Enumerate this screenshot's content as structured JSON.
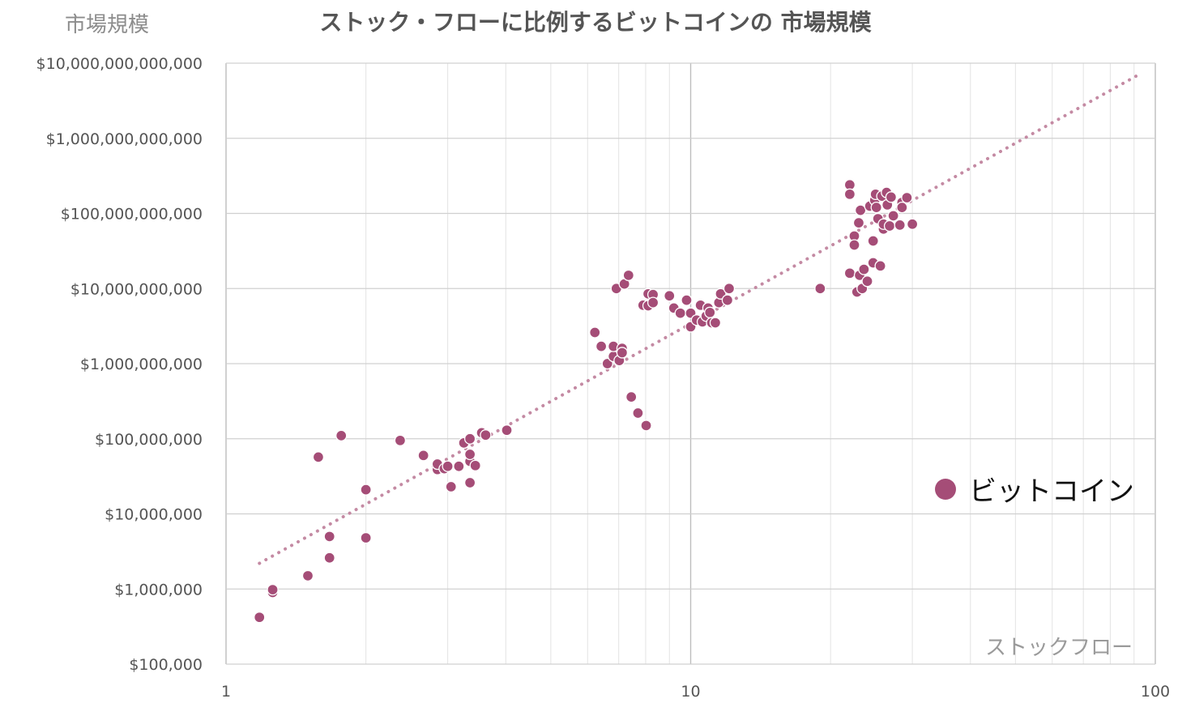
{
  "chart_data": {
    "type": "scatter",
    "title": "ストック・フローに比例するビットコインの 市場規模",
    "ylabel": "市場規模",
    "xlabel": "ストックフロー",
    "x_scale": "log",
    "y_scale": "log",
    "xlim": [
      1,
      100
    ],
    "ylim": [
      100000,
      10000000000000
    ],
    "x_ticks": [
      {
        "value": 1,
        "label": "1"
      },
      {
        "value": 10,
        "label": "10"
      },
      {
        "value": 100,
        "label": "100"
      }
    ],
    "y_ticks": [
      {
        "value": 100000,
        "label": "$100,000"
      },
      {
        "value": 1000000,
        "label": "$1,000,000"
      },
      {
        "value": 10000000,
        "label": "$10,000,000"
      },
      {
        "value": 100000000,
        "label": "$100,000,000"
      },
      {
        "value": 1000000000,
        "label": "$1,000,000,000"
      },
      {
        "value": 10000000000,
        "label": "$10,000,000,000"
      },
      {
        "value": 100000000000,
        "label": "$100,000,000,000"
      },
      {
        "value": 1000000000000,
        "label": "$1,000,000,000,000"
      },
      {
        "value": 10000000000000,
        "label": "$10,000,000,000,000"
      }
    ],
    "grid": true,
    "legend_position": "right",
    "series": [
      {
        "name": "ビットコイン",
        "color": "#a54d77",
        "points": [
          [
            1.18,
            420000
          ],
          [
            1.26,
            900000
          ],
          [
            1.26,
            980000
          ],
          [
            1.5,
            1500000
          ],
          [
            1.67,
            2600000
          ],
          [
            1.67,
            5000000
          ],
          [
            1.58,
            57000000
          ],
          [
            1.77,
            110000000
          ],
          [
            2.0,
            4800000
          ],
          [
            2.0,
            21000000
          ],
          [
            2.37,
            95000000
          ],
          [
            2.66,
            60000000
          ],
          [
            2.85,
            39000000
          ],
          [
            2.85,
            46000000
          ],
          [
            2.95,
            40000000
          ],
          [
            3.0,
            43000000
          ],
          [
            3.05,
            23000000
          ],
          [
            3.17,
            43000000
          ],
          [
            3.25,
            88000000
          ],
          [
            3.35,
            50000000
          ],
          [
            3.35,
            62000000
          ],
          [
            3.35,
            100000000
          ],
          [
            3.35,
            26000000
          ],
          [
            3.44,
            44000000
          ],
          [
            3.55,
            120000000
          ],
          [
            3.62,
            112000000
          ],
          [
            4.02,
            130000000
          ],
          [
            6.22,
            2600000000
          ],
          [
            6.42,
            1700000000
          ],
          [
            6.62,
            1000000000
          ],
          [
            6.82,
            1250000000
          ],
          [
            6.82,
            1700000000
          ],
          [
            6.92,
            10000000000
          ],
          [
            7.02,
            1100000000
          ],
          [
            7.12,
            1600000000
          ],
          [
            7.12,
            1400000000
          ],
          [
            7.2,
            11500000000
          ],
          [
            7.35,
            15000000000
          ],
          [
            7.45,
            360000000
          ],
          [
            7.7,
            220000000
          ],
          [
            7.9,
            6000000000
          ],
          [
            8.02,
            150000000
          ],
          [
            8.1,
            5900000000
          ],
          [
            8.1,
            8500000000
          ],
          [
            8.3,
            8300000000
          ],
          [
            8.3,
            6500000000
          ],
          [
            9.0,
            8000000000
          ],
          [
            9.2,
            5500000000
          ],
          [
            9.5,
            4700000000
          ],
          [
            9.8,
            7000000000
          ],
          [
            10.0,
            3100000000
          ],
          [
            10.0,
            4700000000
          ],
          [
            10.3,
            3800000000
          ],
          [
            10.5,
            6000000000
          ],
          [
            10.6,
            3600000000
          ],
          [
            10.8,
            4300000000
          ],
          [
            10.9,
            5500000000
          ],
          [
            11.0,
            4800000000
          ],
          [
            11.1,
            3500000000
          ],
          [
            11.3,
            3500000000
          ],
          [
            11.5,
            6500000000
          ],
          [
            11.6,
            8500000000
          ],
          [
            12.0,
            7000000000
          ],
          [
            12.1,
            10000000000
          ],
          [
            19.0,
            10000000000
          ],
          [
            22.0,
            240000000000
          ],
          [
            22.0,
            180000000000
          ],
          [
            22.0,
            16000000000
          ],
          [
            22.5,
            50000000000
          ],
          [
            22.5,
            38000000000
          ],
          [
            22.8,
            9000000000
          ],
          [
            23.0,
            75000000000
          ],
          [
            23.1,
            15000000000
          ],
          [
            23.2,
            110000000000
          ],
          [
            23.4,
            10000000000
          ],
          [
            23.6,
            18000000000
          ],
          [
            24.0,
            12500000000
          ],
          [
            24.3,
            125000000000
          ],
          [
            24.7,
            43000000000
          ],
          [
            24.7,
            22000000000
          ],
          [
            24.9,
            150000000000
          ],
          [
            25.0,
            180000000000
          ],
          [
            25.1,
            120000000000
          ],
          [
            25.3,
            85000000000
          ],
          [
            25.6,
            20000000000
          ],
          [
            25.8,
            170000000000
          ],
          [
            26.0,
            62000000000
          ],
          [
            26.0,
            72000000000
          ],
          [
            26.4,
            190000000000
          ],
          [
            26.5,
            130000000000
          ],
          [
            26.8,
            68000000000
          ],
          [
            27.0,
            165000000000
          ],
          [
            27.3,
            93000000000
          ],
          [
            28.2,
            70000000000
          ],
          [
            28.5,
            140000000000
          ],
          [
            28.5,
            120000000000
          ],
          [
            29.2,
            162000000000
          ],
          [
            30.0,
            72000000000
          ]
        ]
      }
    ],
    "trendline": {
      "type": "power",
      "style": "dotted",
      "color": "#c48aa3",
      "from": [
        1.18,
        2200000
      ],
      "to": [
        92.0,
        7000000000000
      ]
    }
  }
}
